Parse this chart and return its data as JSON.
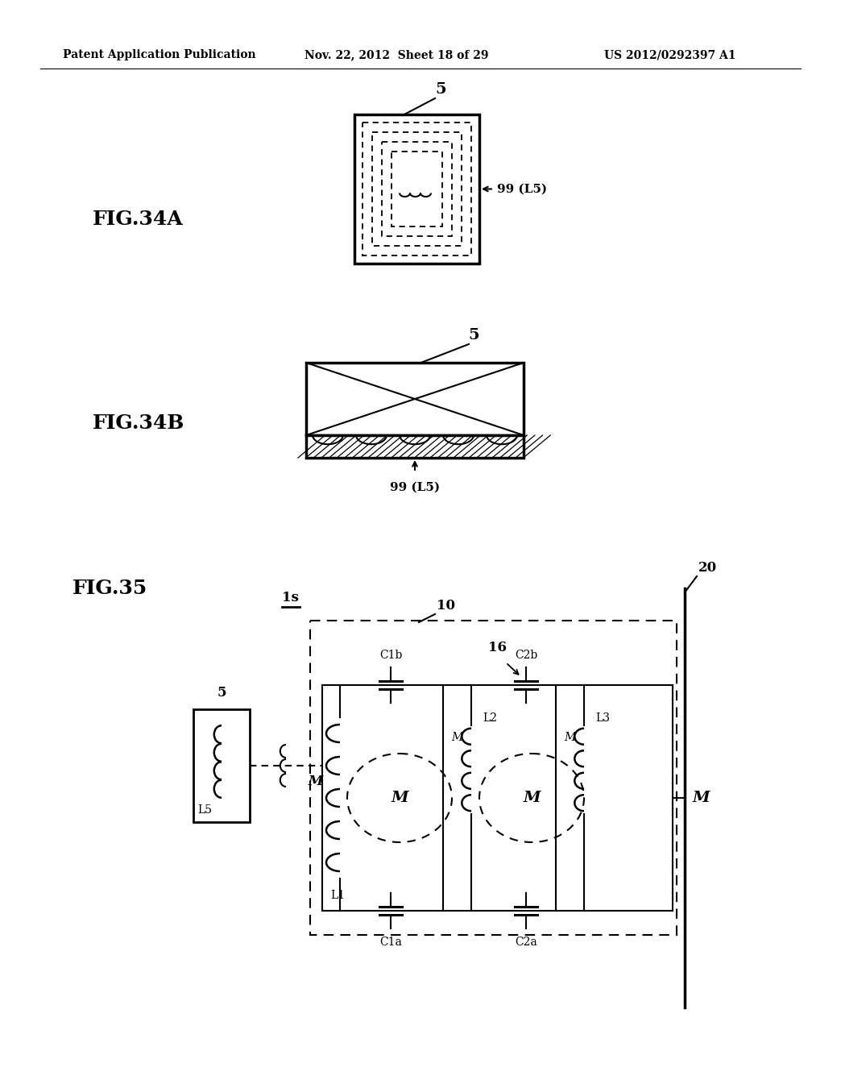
{
  "bg_color": "#ffffff",
  "header_left": "Patent Application Publication",
  "header_mid": "Nov. 22, 2012  Sheet 18 of 29",
  "header_right": "US 2012/0292397 A1",
  "fig34a_label": "FIG.34A",
  "fig34b_label": "FIG.34B",
  "fig35_label": "FIG.35",
  "text_color": "#000000",
  "line_color": "#000000"
}
